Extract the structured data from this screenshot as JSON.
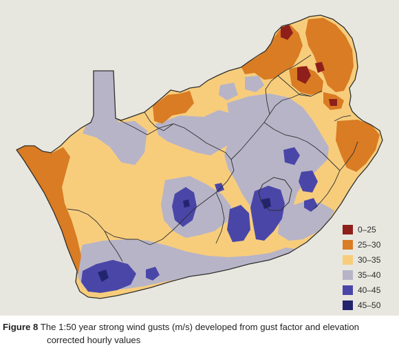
{
  "colors": {
    "panel_bg": "#e8e7df",
    "class_0_25": "#8e1f1a",
    "class_25_30": "#d97c24",
    "class_30_35": "#f7cd7c",
    "class_35_40": "#b7b4c8",
    "class_40_45": "#4a46a8",
    "class_45_50": "#23246e",
    "border": "#2d2d2d"
  },
  "legend": {
    "items": [
      {
        "label": "0–25",
        "color": "#8e1f1a"
      },
      {
        "label": "25–30",
        "color": "#d97c24"
      },
      {
        "label": "30–35",
        "color": "#f7cd7c"
      },
      {
        "label": "35–40",
        "color": "#b7b4c8"
      },
      {
        "label": "40–45",
        "color": "#4a46a8"
      },
      {
        "label": "45–50",
        "color": "#23246e"
      }
    ]
  },
  "caption": {
    "label": "Figure 8",
    "line1": " The 1:50 year strong wind gusts (m/s) developed from gust factor and elevation",
    "line2": "corrected hourly values"
  }
}
